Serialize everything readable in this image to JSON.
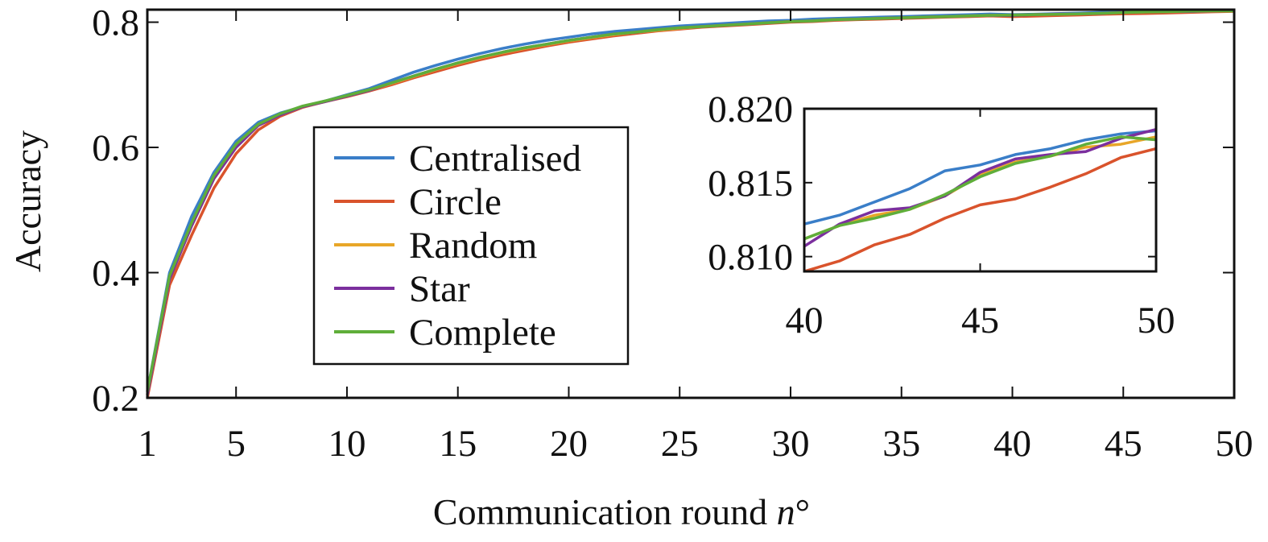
{
  "chart_data": [
    {
      "type": "line",
      "title": "",
      "xlabel": "Communication round",
      "xlabel_italic": "n",
      "xlabel_suffix": "°",
      "ylabel": "Accuracy",
      "xlim": [
        1,
        50
      ],
      "ylim": [
        0.2,
        0.82
      ],
      "xticks": [
        1,
        5,
        10,
        15,
        20,
        25,
        30,
        35,
        40,
        45,
        50
      ],
      "yticks": [
        0.2,
        0.4,
        0.6,
        0.8
      ],
      "ytick_labels": [
        "0.2",
        "0.4",
        "0.6",
        "0.8"
      ],
      "grid": false,
      "legend_position": "center-left",
      "x": [
        1,
        2,
        3,
        4,
        5,
        6,
        7,
        8,
        9,
        10,
        11,
        12,
        13,
        14,
        15,
        16,
        17,
        18,
        19,
        20,
        21,
        22,
        23,
        24,
        25,
        26,
        27,
        28,
        29,
        30,
        31,
        32,
        33,
        34,
        35,
        36,
        37,
        38,
        39,
        40,
        41,
        42,
        43,
        44,
        45,
        46,
        47,
        48,
        49,
        50
      ],
      "series": [
        {
          "name": "Centralised",
          "color": "#3a7ec8",
          "values": [
            0.21,
            0.4,
            0.49,
            0.56,
            0.61,
            0.64,
            0.655,
            0.665,
            0.674,
            0.684,
            0.694,
            0.707,
            0.72,
            0.731,
            0.741,
            0.75,
            0.758,
            0.765,
            0.771,
            0.776,
            0.781,
            0.785,
            0.788,
            0.791,
            0.794,
            0.796,
            0.798,
            0.8,
            0.802,
            0.803,
            0.805,
            0.806,
            0.807,
            0.808,
            0.809,
            0.81,
            0.811,
            0.812,
            0.813,
            0.8122,
            0.8128,
            0.8137,
            0.8146,
            0.8158,
            0.8162,
            0.8169,
            0.8173,
            0.8179,
            0.8183,
            0.8185
          ]
        },
        {
          "name": "Circle",
          "color": "#d9532c",
          "values": [
            0.2,
            0.38,
            0.46,
            0.535,
            0.59,
            0.628,
            0.65,
            0.664,
            0.673,
            0.681,
            0.69,
            0.7,
            0.711,
            0.721,
            0.731,
            0.74,
            0.748,
            0.755,
            0.762,
            0.768,
            0.773,
            0.778,
            0.782,
            0.786,
            0.789,
            0.792,
            0.794,
            0.796,
            0.798,
            0.8,
            0.801,
            0.803,
            0.804,
            0.805,
            0.806,
            0.807,
            0.808,
            0.809,
            0.81,
            0.809,
            0.8097,
            0.8108,
            0.8115,
            0.8126,
            0.8135,
            0.8139,
            0.8147,
            0.8156,
            0.8167,
            0.8173
          ]
        },
        {
          "name": "Random",
          "color": "#e8a628",
          "values": [
            0.205,
            0.39,
            0.475,
            0.55,
            0.6,
            0.635,
            0.652,
            0.665,
            0.673,
            0.682,
            0.691,
            0.702,
            0.713,
            0.724,
            0.734,
            0.743,
            0.751,
            0.758,
            0.764,
            0.77,
            0.775,
            0.78,
            0.784,
            0.787,
            0.79,
            0.793,
            0.795,
            0.797,
            0.799,
            0.801,
            0.802,
            0.804,
            0.805,
            0.806,
            0.807,
            0.808,
            0.809,
            0.81,
            0.811,
            0.8112,
            0.8121,
            0.8128,
            0.8132,
            0.8141,
            0.8155,
            0.8164,
            0.8168,
            0.8174,
            0.8176,
            0.8181
          ]
        },
        {
          "name": "Star",
          "color": "#7b2f9e",
          "values": [
            0.205,
            0.39,
            0.475,
            0.55,
            0.6,
            0.635,
            0.652,
            0.665,
            0.673,
            0.682,
            0.691,
            0.703,
            0.714,
            0.725,
            0.735,
            0.744,
            0.752,
            0.759,
            0.765,
            0.771,
            0.776,
            0.781,
            0.784,
            0.788,
            0.791,
            0.793,
            0.795,
            0.797,
            0.799,
            0.801,
            0.802,
            0.804,
            0.805,
            0.806,
            0.807,
            0.808,
            0.809,
            0.81,
            0.811,
            0.8107,
            0.8122,
            0.8131,
            0.8133,
            0.8141,
            0.8157,
            0.8166,
            0.8169,
            0.8171,
            0.818,
            0.8186
          ]
        },
        {
          "name": "Complete",
          "color": "#5fae3a",
          "values": [
            0.21,
            0.395,
            0.48,
            0.555,
            0.605,
            0.637,
            0.654,
            0.666,
            0.674,
            0.683,
            0.692,
            0.703,
            0.714,
            0.725,
            0.735,
            0.744,
            0.752,
            0.759,
            0.765,
            0.771,
            0.776,
            0.781,
            0.784,
            0.788,
            0.791,
            0.793,
            0.795,
            0.797,
            0.799,
            0.801,
            0.802,
            0.804,
            0.805,
            0.806,
            0.807,
            0.808,
            0.809,
            0.81,
            0.811,
            0.8112,
            0.8121,
            0.8126,
            0.8132,
            0.8142,
            0.8154,
            0.8163,
            0.8168,
            0.8176,
            0.8181,
            0.8179
          ]
        }
      ]
    },
    {
      "type": "line",
      "title": "",
      "xlim": [
        40,
        50
      ],
      "ylim": [
        0.809,
        0.82
      ],
      "xticks": [
        40,
        45,
        50
      ],
      "yticks": [
        0.81,
        0.815,
        0.82
      ],
      "ytick_labels": [
        "0.810",
        "0.815",
        "0.820"
      ],
      "grid": false,
      "x": [
        40,
        41,
        42,
        43,
        44,
        45,
        46,
        47,
        48,
        49,
        50
      ],
      "series": [
        {
          "name": "Centralised",
          "color": "#3a7ec8",
          "values": [
            0.8122,
            0.8128,
            0.8137,
            0.8146,
            0.8158,
            0.8162,
            0.8169,
            0.8173,
            0.8179,
            0.8183,
            0.8185
          ]
        },
        {
          "name": "Circle",
          "color": "#d9532c",
          "values": [
            0.809,
            0.8097,
            0.8108,
            0.8115,
            0.8126,
            0.8135,
            0.8139,
            0.8147,
            0.8156,
            0.8167,
            0.8173
          ]
        },
        {
          "name": "Random",
          "color": "#e8a628",
          "values": [
            0.8112,
            0.8121,
            0.8128,
            0.8132,
            0.8141,
            0.8155,
            0.8164,
            0.8168,
            0.8174,
            0.8176,
            0.8181
          ]
        },
        {
          "name": "Star",
          "color": "#7b2f9e",
          "values": [
            0.8107,
            0.8122,
            0.8131,
            0.8133,
            0.8141,
            0.8157,
            0.8166,
            0.8169,
            0.8171,
            0.818,
            0.8186
          ]
        },
        {
          "name": "Complete",
          "color": "#5fae3a",
          "values": [
            0.8112,
            0.8121,
            0.8126,
            0.8132,
            0.8142,
            0.8154,
            0.8163,
            0.8168,
            0.8176,
            0.8181,
            0.8179
          ]
        }
      ]
    }
  ]
}
